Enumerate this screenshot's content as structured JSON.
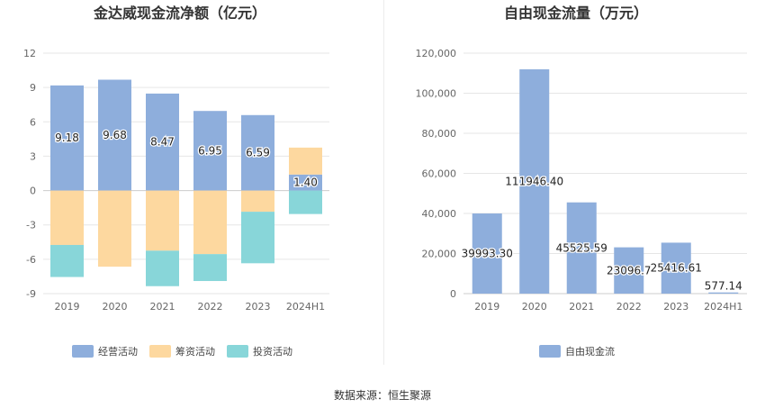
{
  "source_text": "数据来源：恒生聚源",
  "chart_data": [
    {
      "type": "bar",
      "title": "金达威现金流净额（亿元）",
      "categories": [
        "2019",
        "2020",
        "2021",
        "2022",
        "2023",
        "2024H1"
      ],
      "ylim": [
        -9,
        12
      ],
      "yticks": [
        12,
        9,
        6,
        3,
        0,
        -3,
        -6,
        -9
      ],
      "stacked": true,
      "grid": true,
      "legend_position": "bottom",
      "series": [
        {
          "name": "经营活动",
          "color": "#8eaedc",
          "values": [
            9.18,
            9.68,
            8.47,
            6.95,
            6.59,
            1.4
          ]
        },
        {
          "name": "筹资活动",
          "color": "#fdd89f",
          "values": [
            -4.75,
            -6.65,
            -5.25,
            -5.55,
            -1.85,
            2.35
          ]
        },
        {
          "name": "投资活动",
          "color": "#88d6d9",
          "values": [
            -2.8,
            0,
            -3.1,
            -2.35,
            -4.5,
            -2.05
          ]
        }
      ],
      "data_labels": [
        "9.18",
        "9.68",
        "8.47",
        "6.95",
        "6.59",
        "1.40"
      ]
    },
    {
      "type": "bar",
      "title": "自由现金流量（万元）",
      "categories": [
        "2019",
        "2020",
        "2021",
        "2022",
        "2023",
        "2024H1"
      ],
      "ylim": [
        0,
        120000
      ],
      "yticks": [
        "120,000",
        "100,000",
        "80,000",
        "60,000",
        "40,000",
        "20,000",
        "0"
      ],
      "grid": true,
      "legend_position": "bottom",
      "series": [
        {
          "name": "自由现金流",
          "color": "#8eaedc",
          "values": [
            39993.3,
            111946.4,
            45525.59,
            23096.7,
            25416.61,
            577.14
          ]
        }
      ],
      "data_labels": [
        "39993.30",
        "111946.40",
        "45525.59",
        "23096.7",
        "25416.61",
        "577.14"
      ]
    }
  ]
}
